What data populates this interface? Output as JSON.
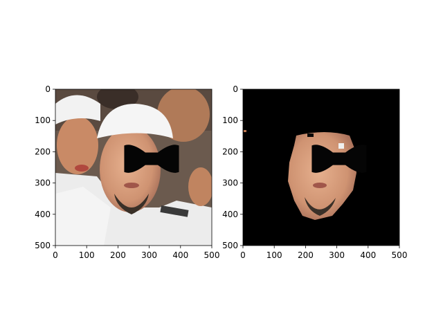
{
  "chart_data": [
    {
      "type": "image",
      "panel": "left",
      "content": "photo of crowd; central face with black bowtie-shaped mask over the eyes",
      "xlim": [
        0,
        500
      ],
      "ylim": [
        500,
        0
      ],
      "x_ticks": [
        0,
        100,
        200,
        300,
        400,
        500
      ],
      "y_ticks": [
        0,
        100,
        200,
        300,
        400,
        500
      ],
      "eye_mask": {
        "x_range": [
          220,
          395
        ],
        "y_range": [
          175,
          270
        ],
        "color": "#050505"
      }
    },
    {
      "type": "image",
      "panel": "right",
      "content": "segmented face region on black background; eye area masked",
      "xlim": [
        0,
        500
      ],
      "ylim": [
        500,
        0
      ],
      "x_ticks": [
        0,
        100,
        200,
        300,
        400,
        500
      ],
      "y_ticks": [
        0,
        100,
        200,
        300,
        400,
        500
      ],
      "eye_mask": {
        "x_range": [
          220,
          395
        ],
        "y_range": [
          175,
          270
        ],
        "color": "#050505"
      }
    }
  ],
  "colors": {
    "background": "#ffffff",
    "masked": "#000000",
    "skin": "#d9a07c",
    "white_cloth": "#eeeeee",
    "hair_dark": "#2a2420",
    "beard": "#3a3028"
  }
}
